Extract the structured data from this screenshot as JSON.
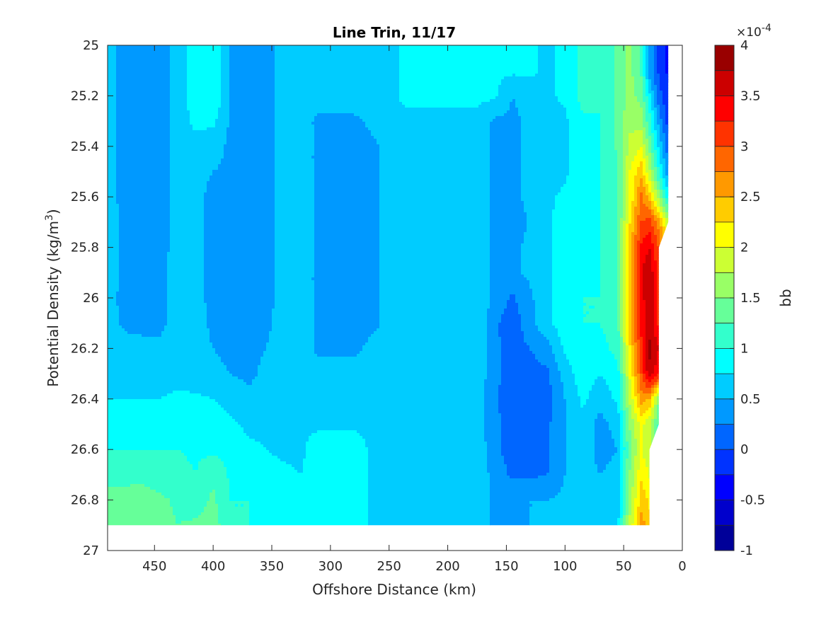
{
  "chart_data": {
    "type": "heatmap",
    "subtype": "filled-contour",
    "title": "Line Trin, 11/17",
    "xlabel": "Offshore Distance (km)",
    "ylabel_main": "Potential Density (kg/m",
    "ylabel_sup": "3",
    "ylabel_close": ")",
    "xlim": [
      490,
      0
    ],
    "x_reversed": true,
    "ylim": [
      25,
      27
    ],
    "y_reversed": true,
    "xticks": [
      450,
      400,
      350,
      300,
      250,
      200,
      150,
      100,
      50,
      0
    ],
    "yticks": [
      25,
      25.2,
      25.4,
      25.6,
      25.8,
      26,
      26.2,
      26.4,
      26.6,
      26.8,
      27
    ],
    "xtick_labels": [
      "450",
      "400",
      "350",
      "300",
      "250",
      "200",
      "150",
      "100",
      "50",
      "0"
    ],
    "ytick_labels": [
      "25",
      "25.2",
      "25.4",
      "25.6",
      "25.8",
      "26",
      "26.2",
      "26.4",
      "26.6",
      "26.8",
      "27"
    ],
    "colorbar": {
      "label": "bb",
      "exponent_prefix": "×10",
      "exponent": "-4",
      "range": [
        -1,
        4
      ],
      "levels": [
        -1,
        -0.75,
        -0.5,
        -0.25,
        0,
        0.25,
        0.5,
        0.75,
        1,
        1.25,
        1.5,
        1.75,
        2,
        2.25,
        2.5,
        2.75,
        3,
        3.25,
        3.5,
        3.75,
        4
      ],
      "tick_values": [
        -1,
        -0.5,
        0,
        0.5,
        1,
        1.5,
        2,
        2.5,
        3,
        3.5,
        4
      ],
      "tick_labels": [
        "-1",
        "-0.5",
        "0",
        "0.5",
        "1",
        "1.5",
        "2",
        "2.5",
        "3",
        "3.5",
        "4"
      ],
      "colormap": "jet"
    },
    "data_extent": {
      "x_max": 490,
      "sigma_max": 26.9,
      "note": "no data below sigma 26.9; coastal edge between 10 and 30 km"
    },
    "grid_x": [
      490,
      475,
      460,
      445,
      430,
      415,
      400,
      385,
      370,
      355,
      340,
      325,
      310,
      295,
      280,
      265,
      250,
      235,
      220,
      205,
      190,
      175,
      160,
      145,
      130,
      115,
      100,
      85,
      70,
      55,
      45,
      35,
      28,
      20,
      12
    ],
    "grid_y": [
      25,
      25.1,
      25.2,
      25.3,
      25.4,
      25.5,
      25.6,
      25.7,
      25.8,
      25.9,
      26,
      26.1,
      26.2,
      26.3,
      26.4,
      26.5,
      26.6,
      26.7,
      26.8,
      26.9
    ],
    "bb_values_x1e4": [
      [
        0.55,
        0.45,
        0.4,
        0.45,
        0.55,
        0.95,
        1.0,
        0.45,
        0.4,
        0.45,
        0.55,
        0.6,
        0.6,
        0.62,
        0.64,
        0.7,
        0.7,
        0.8,
        0.8,
        0.8,
        0.8,
        0.8,
        0.8,
        0.8,
        0.8,
        0.7,
        0.8,
        1.1,
        1.0,
        1.3,
        1.6,
        1.2,
        0.4,
        -0.05,
        -0.3
      ],
      [
        0.55,
        0.45,
        0.4,
        0.45,
        0.55,
        0.95,
        1.0,
        0.45,
        0.4,
        0.45,
        0.55,
        0.6,
        0.6,
        0.62,
        0.64,
        0.7,
        0.7,
        0.8,
        0.8,
        0.8,
        0.8,
        0.8,
        0.8,
        0.8,
        0.8,
        0.7,
        0.8,
        1.1,
        1.0,
        1.3,
        1.6,
        1.2,
        0.4,
        -0.05,
        -0.3
      ],
      [
        0.55,
        0.45,
        0.4,
        0.45,
        0.55,
        0.95,
        1.0,
        0.45,
        0.4,
        0.45,
        0.55,
        0.6,
        0.6,
        0.62,
        0.64,
        0.7,
        0.7,
        0.8,
        0.8,
        0.8,
        0.8,
        0.8,
        0.8,
        0.5,
        0.6,
        0.7,
        0.8,
        1.1,
        1.0,
        1.3,
        1.6,
        1.4,
        0.8,
        0.1,
        -0.2
      ],
      [
        0.55,
        0.45,
        0.4,
        0.45,
        0.55,
        0.85,
        0.8,
        0.45,
        0.4,
        0.45,
        0.55,
        0.6,
        0.45,
        0.45,
        0.45,
        0.55,
        0.7,
        0.7,
        0.7,
        0.7,
        0.7,
        0.7,
        0.45,
        0.45,
        0.55,
        0.65,
        0.7,
        0.95,
        1.0,
        1.3,
        1.7,
        1.6,
        1.1,
        0.4,
        -0.1
      ],
      [
        0.55,
        0.45,
        0.4,
        0.45,
        0.55,
        0.6,
        0.6,
        0.45,
        0.4,
        0.45,
        0.55,
        0.6,
        0.45,
        0.4,
        0.4,
        0.45,
        0.55,
        0.7,
        0.7,
        0.7,
        0.7,
        0.7,
        0.45,
        0.45,
        0.55,
        0.65,
        0.7,
        0.95,
        1.0,
        1.3,
        1.8,
        2.0,
        1.4,
        0.7,
        0.1
      ],
      [
        0.55,
        0.45,
        0.4,
        0.45,
        0.55,
        0.55,
        0.5,
        0.45,
        0.4,
        0.45,
        0.55,
        0.6,
        0.45,
        0.4,
        0.4,
        0.45,
        0.55,
        0.7,
        0.7,
        0.7,
        0.7,
        0.7,
        0.45,
        0.45,
        0.55,
        0.65,
        0.7,
        0.95,
        1.0,
        1.2,
        2.0,
        2.4,
        1.8,
        1.0,
        0.3
      ],
      [
        0.55,
        0.45,
        0.4,
        0.45,
        0.55,
        0.55,
        0.45,
        0.45,
        0.4,
        0.45,
        0.55,
        0.6,
        0.45,
        0.4,
        0.4,
        0.45,
        0.55,
        0.7,
        0.7,
        0.6,
        0.7,
        0.7,
        0.45,
        0.45,
        0.55,
        0.7,
        0.8,
        0.95,
        1.0,
        1.2,
        2.0,
        2.8,
        2.4,
        1.6,
        0.8
      ],
      [
        0.6,
        0.45,
        0.4,
        0.45,
        0.55,
        0.55,
        0.45,
        0.45,
        0.4,
        0.45,
        0.55,
        0.6,
        0.45,
        0.4,
        0.4,
        0.45,
        0.55,
        0.7,
        0.7,
        0.6,
        0.7,
        0.7,
        0.45,
        0.3,
        0.55,
        0.7,
        0.9,
        0.95,
        1.0,
        1.2,
        2.2,
        3.0,
        3.1,
        2.6,
        1.8
      ],
      [
        0.6,
        0.45,
        0.4,
        0.45,
        0.55,
        0.55,
        0.45,
        0.45,
        0.4,
        0.45,
        0.55,
        0.6,
        0.45,
        0.4,
        0.4,
        0.45,
        0.55,
        0.7,
        0.7,
        0.6,
        0.7,
        0.7,
        0.45,
        0.45,
        0.55,
        0.7,
        0.9,
        0.95,
        1.0,
        1.2,
        2.4,
        3.3,
        3.5,
        3.0,
        2.2
      ],
      [
        0.6,
        0.45,
        0.4,
        0.45,
        0.6,
        0.55,
        0.45,
        0.45,
        0.4,
        0.45,
        0.55,
        0.6,
        0.45,
        0.4,
        0.4,
        0.45,
        0.55,
        0.7,
        0.7,
        0.6,
        0.7,
        0.7,
        0.45,
        0.45,
        0.55,
        0.7,
        0.9,
        0.95,
        1.0,
        1.2,
        2.4,
        3.5,
        3.7,
        3.1,
        2.2
      ],
      [
        0.55,
        0.45,
        0.4,
        0.45,
        0.6,
        0.55,
        0.45,
        0.45,
        0.4,
        0.45,
        0.55,
        0.6,
        0.45,
        0.4,
        0.4,
        0.45,
        0.55,
        0.7,
        0.7,
        0.6,
        0.7,
        0.7,
        0.45,
        0.2,
        0.45,
        0.7,
        0.9,
        1.0,
        1.0,
        1.2,
        2.4,
        3.4,
        3.7,
        3.1,
        2.0
      ],
      [
        0.6,
        0.45,
        0.4,
        0.45,
        0.6,
        0.6,
        0.45,
        0.45,
        0.4,
        0.45,
        0.6,
        0.6,
        0.45,
        0.4,
        0.4,
        0.45,
        0.55,
        0.7,
        0.7,
        0.6,
        0.7,
        0.7,
        0.3,
        0.1,
        0.4,
        0.7,
        0.9,
        1.0,
        1.0,
        1.2,
        2.4,
        3.3,
        3.7,
        3.2,
        2.0
      ],
      [
        0.65,
        0.6,
        0.6,
        0.55,
        0.6,
        0.6,
        0.5,
        0.45,
        0.45,
        0.5,
        0.6,
        0.6,
        0.45,
        0.45,
        0.45,
        0.55,
        0.6,
        0.7,
        0.7,
        0.65,
        0.7,
        0.7,
        0.3,
        0.15,
        0.25,
        0.4,
        0.8,
        1.0,
        0.9,
        1.1,
        2.2,
        3.2,
        3.8,
        3.5,
        2.0
      ],
      [
        0.7,
        0.65,
        0.65,
        0.65,
        0.65,
        0.6,
        0.55,
        0.5,
        0.45,
        0.55,
        0.6,
        0.6,
        0.6,
        0.6,
        0.6,
        0.6,
        0.65,
        0.7,
        0.7,
        0.65,
        0.7,
        0.7,
        0.3,
        0.15,
        0.15,
        0.2,
        0.6,
        0.9,
        0.75,
        0.9,
        2.0,
        3.0,
        3.7,
        3.3,
        1.8
      ],
      [
        0.75,
        0.75,
        0.75,
        0.75,
        0.8,
        0.8,
        0.75,
        0.65,
        0.55,
        0.6,
        0.65,
        0.7,
        0.7,
        0.7,
        0.7,
        0.7,
        0.7,
        0.7,
        0.7,
        0.7,
        0.7,
        0.65,
        0.3,
        0.1,
        0.1,
        0.15,
        0.5,
        0.8,
        0.6,
        0.8,
        1.8,
        2.6,
        2.5,
        1.5,
        0.8
      ],
      [
        0.8,
        0.95,
        0.95,
        0.95,
        0.9,
        0.9,
        0.9,
        0.8,
        0.7,
        0.7,
        0.7,
        0.7,
        0.7,
        0.7,
        0.7,
        0.7,
        0.7,
        0.7,
        0.7,
        0.7,
        0.7,
        0.65,
        0.3,
        0.15,
        0.15,
        0.2,
        0.5,
        0.7,
        0.4,
        0.6,
        1.5,
        2.1,
        1.8,
        1.2,
        0.6
      ],
      [
        1.0,
        1.0,
        1.0,
        1.0,
        1.0,
        0.95,
        0.95,
        0.9,
        0.8,
        0.75,
        0.7,
        0.7,
        0.9,
        0.95,
        0.9,
        0.7,
        0.7,
        0.7,
        0.7,
        0.7,
        0.7,
        0.7,
        0.3,
        0.15,
        0.15,
        0.2,
        0.5,
        0.7,
        0.4,
        0.5,
        1.4,
        2.0,
        1.8,
        1.2,
        0.6
      ],
      [
        1.2,
        1.2,
        1.2,
        1.1,
        1.1,
        1.0,
        1.2,
        0.95,
        0.9,
        0.85,
        0.8,
        0.75,
        0.9,
        0.95,
        0.9,
        0.7,
        0.7,
        0.7,
        0.7,
        0.7,
        0.7,
        0.7,
        0.4,
        0.2,
        0.2,
        0.25,
        0.5,
        0.6,
        0.5,
        0.6,
        1.5,
        2.2,
        2.0,
        1.3,
        0.6
      ],
      [
        1.3,
        1.3,
        1.35,
        1.3,
        1.2,
        1.1,
        1.3,
        1.0,
        1.0,
        0.9,
        0.9,
        0.9,
        0.9,
        0.95,
        0.9,
        0.7,
        0.7,
        0.7,
        0.7,
        0.7,
        0.7,
        0.7,
        0.45,
        0.45,
        0.5,
        0.5,
        0.55,
        0.6,
        0.55,
        0.6,
        1.6,
        2.4,
        2.2,
        1.4,
        0.6
      ],
      [
        1.3,
        1.35,
        1.4,
        1.35,
        1.25,
        1.3,
        1.4,
        1.0,
        1.0,
        0.9,
        0.9,
        0.9,
        0.9,
        0.95,
        0.9,
        0.7,
        0.7,
        0.7,
        0.7,
        0.7,
        0.7,
        0.7,
        0.45,
        0.45,
        0.5,
        0.5,
        0.55,
        0.6,
        0.55,
        0.7,
        1.8,
        2.6,
        2.4,
        1.4,
        0.6
      ]
    ]
  }
}
